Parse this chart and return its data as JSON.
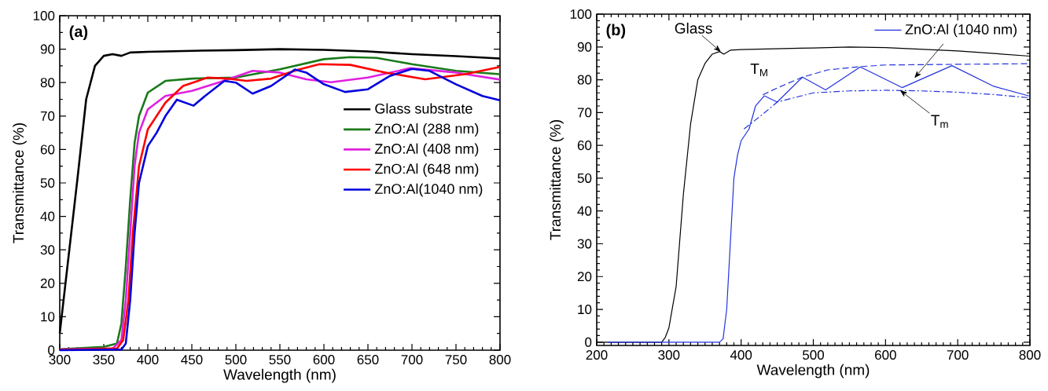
{
  "chart_data": [
    {
      "type": "line",
      "xlabel": "Wavelength (nm)",
      "ylabel": "Transmittance (%)",
      "annotations": [
        "(a)"
      ],
      "legend": "right",
      "xlim": [
        300,
        800
      ],
      "ylim": [
        0,
        100
      ],
      "xticks": [
        300,
        350,
        400,
        450,
        500,
        550,
        600,
        650,
        700,
        750,
        800
      ],
      "yticks": [
        0,
        10,
        20,
        30,
        40,
        50,
        60,
        70,
        80,
        90,
        100
      ],
      "series": [
        {
          "name": "Glass substrate",
          "color": "#000000",
          "x": [
            300,
            310,
            320,
            330,
            340,
            350,
            360,
            370,
            380,
            400,
            450,
            500,
            550,
            600,
            650,
            700,
            750,
            800
          ],
          "values": [
            5,
            28,
            51,
            75,
            85,
            88,
            88.5,
            88,
            89,
            89.2,
            89.5,
            89.7,
            90,
            89.8,
            89.3,
            88.5,
            87.9,
            87.2
          ]
        },
        {
          "name": "ZnO:Al (288 nm)",
          "color": "#1a7a1a",
          "x": [
            300,
            350,
            365,
            370,
            375,
            380,
            385,
            390,
            400,
            420,
            450,
            500,
            550,
            600,
            630,
            660,
            700,
            750,
            800
          ],
          "values": [
            0.3,
            1,
            2,
            8,
            25,
            45,
            62,
            70,
            77,
            80.5,
            81.2,
            81.5,
            84,
            87,
            87.6,
            87.4,
            85.5,
            83.5,
            82.5
          ]
        },
        {
          "name": "ZnO:Al (408 nm)",
          "color": "#e020e0",
          "x": [
            300,
            360,
            370,
            375,
            380,
            385,
            390,
            400,
            420,
            450,
            480,
            519,
            550,
            580,
            608,
            650,
            698,
            750,
            800
          ],
          "values": [
            0.2,
            0.5,
            3,
            15,
            35,
            55,
            65,
            72,
            76,
            77.5,
            80,
            83.5,
            83,
            81,
            80.1,
            81.5,
            84.3,
            83,
            80.9
          ]
        },
        {
          "name": "ZnO:Al (648 nm)",
          "color": "#ff0000",
          "x": [
            300,
            365,
            372,
            378,
            383,
            390,
            400,
            420,
            440,
            468,
            490,
            512,
            540,
            570,
            595,
            630,
            670,
            715,
            760,
            800
          ],
          "values": [
            0.1,
            0.5,
            3,
            15,
            35,
            55,
            66,
            74,
            79,
            81.5,
            81.2,
            80.5,
            81.2,
            83.8,
            85.5,
            85.3,
            83,
            81,
            82.5,
            84.7
          ]
        },
        {
          "name": "ZnO:Al(1040 nm)",
          "color": "#0000dd",
          "x": [
            300,
            370,
            375,
            380,
            385,
            390,
            400,
            410,
            420,
            433,
            452,
            465,
            487,
            500,
            519,
            540,
            567,
            580,
            600,
            624,
            650,
            675,
            700,
            720,
            750,
            780,
            800
          ],
          "values": [
            0,
            0.2,
            2,
            15,
            35,
            50,
            61,
            65,
            70,
            74.9,
            73.1,
            76,
            80.5,
            80,
            76.7,
            79,
            83.9,
            83,
            79.5,
            77.2,
            78,
            82,
            84.1,
            83.5,
            79.5,
            76,
            74.7
          ]
        }
      ]
    },
    {
      "type": "line",
      "xlabel": "Wavelength (nm)",
      "ylabel": "Transmittance (%)",
      "legend": "top right",
      "annotations": [
        "(b)",
        {
          "text": "Glass",
          "x": 372,
          "y": 88.5
        },
        {
          "text": "T$_{M}$",
          "x": 445,
          "y": 77.5
        },
        {
          "text": "T$_{m}$",
          "x": 620,
          "y": 76.8
        }
      ],
      "xlim": [
        200,
        800
      ],
      "ylim": [
        -1,
        100
      ],
      "xticks": [
        200,
        300,
        400,
        500,
        600,
        700,
        800
      ],
      "yticks": [
        0,
        10,
        20,
        30,
        40,
        50,
        60,
        70,
        80,
        90,
        100
      ],
      "series": [
        {
          "color": "#000000",
          "x": [
            200,
            290,
            295,
            300,
            310,
            320,
            330,
            340,
            350,
            360,
            370,
            376,
            385,
            400,
            500,
            550,
            600,
            700,
            800
          ],
          "values": [
            0,
            0,
            1.5,
            4.4,
            17,
            45,
            66.5,
            80,
            85,
            87.8,
            88.6,
            87.8,
            89,
            89.2,
            89.7,
            90,
            89.8,
            88.8,
            87.2
          ]
        },
        {
          "name": "ZnO:Al (1040 nm)",
          "color": "#2233dd",
          "x": [
            215,
            370,
            375,
            380,
            385,
            390,
            395,
            400,
            411,
            420,
            432,
            450,
            485,
            517,
            565,
            623,
            692,
            750,
            800
          ],
          "values": [
            0,
            0,
            1,
            10,
            30,
            50,
            57,
            61.4,
            65,
            72,
            75.1,
            73.2,
            80.8,
            76.9,
            83.9,
            77.6,
            84.3,
            78,
            75
          ]
        },
        {
          "color": "#2233dd",
          "line_style": "dashed",
          "x": [
            430,
            450,
            485,
            520,
            565,
            600,
            700,
            800
          ],
          "values": [
            75.4,
            77.5,
            80.8,
            83,
            84,
            84.5,
            84.7,
            84.9
          ]
        },
        {
          "color": "#2233dd",
          "line_style": "dashdot",
          "x": [
            404,
            430,
            450,
            500,
            550,
            600,
            650,
            700,
            750,
            800
          ],
          "values": [
            65,
            69.5,
            73.2,
            76,
            76.6,
            76.8,
            76.6,
            76.2,
            75.5,
            74.5
          ]
        }
      ]
    }
  ]
}
